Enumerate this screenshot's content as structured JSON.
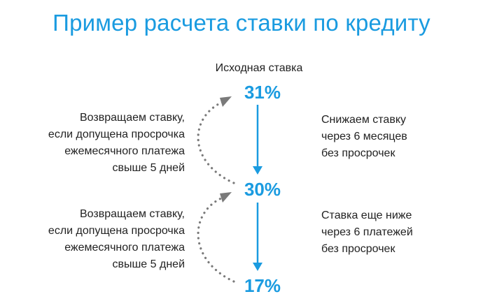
{
  "title": "Пример расчета ставки по кредиту",
  "initial_rate_label": "Исходная ставка",
  "rates": [
    "31%",
    "30%",
    "17%"
  ],
  "left_notes": [
    [
      "Возвращаем ставку,",
      "если допущена просрочка",
      "ежемесячного платежа",
      "свыше 5 дней"
    ],
    [
      "Возвращаем ставку,",
      "если допущена просрочка",
      "ежемесячного платежа",
      "свыше 5 дней"
    ]
  ],
  "right_notes": [
    [
      "Снижаем ставку",
      "через 6 месяцев",
      "без просрочек"
    ],
    [
      "Ставка еще ниже",
      "через 6 платежей",
      "без просрочек"
    ]
  ],
  "colors": {
    "accent": "#1a9be0",
    "text": "#222222",
    "dotted_arrow": "#7a7a7a"
  }
}
